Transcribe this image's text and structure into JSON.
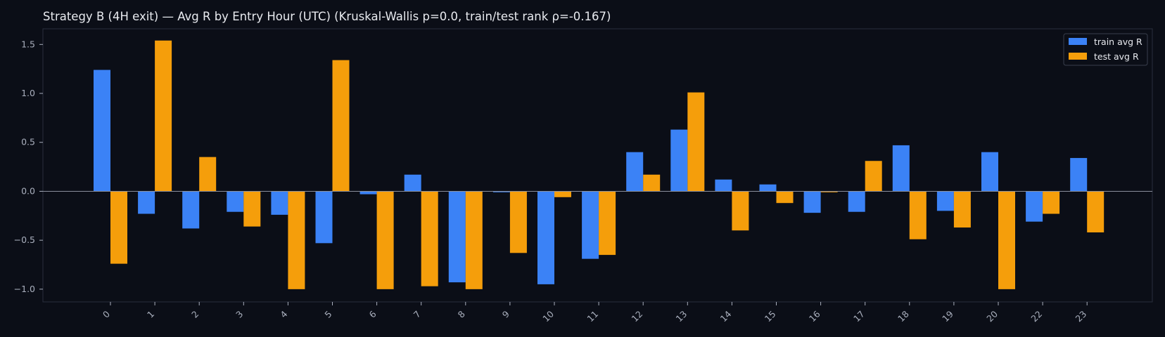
{
  "chart_data": {
    "type": "bar",
    "title": "Strategy B (4H exit) — Avg R by Entry Hour (UTC) (Kruskal-Wallis p=0.0, train/test rank ρ=-0.167)",
    "xlabel": "",
    "ylabel": "",
    "categories": [
      "0",
      "1",
      "2",
      "3",
      "4",
      "5",
      "6",
      "7",
      "8",
      "9",
      "10",
      "11",
      "12",
      "13",
      "14",
      "15",
      "16",
      "17",
      "18",
      "19",
      "20",
      "22",
      "23"
    ],
    "series": [
      {
        "name": "train avg R",
        "color": "#3b82f6",
        "values": [
          1.24,
          -0.23,
          -0.38,
          -0.21,
          -0.24,
          -0.53,
          -0.03,
          0.17,
          -0.93,
          -0.01,
          -0.95,
          -0.69,
          0.4,
          0.63,
          0.12,
          0.07,
          -0.22,
          -0.21,
          0.47,
          -0.2,
          0.4,
          -0.31,
          0.34
        ]
      },
      {
        "name": "test avg R",
        "color": "#f59e0b",
        "values": [
          -0.74,
          1.54,
          0.35,
          -0.36,
          -1.0,
          1.34,
          -1.0,
          -0.97,
          -1.0,
          -0.63,
          -0.06,
          -0.65,
          0.17,
          1.01,
          -0.4,
          -0.12,
          -0.01,
          0.31,
          -0.49,
          -0.37,
          -1.0,
          -0.23,
          -0.42
        ]
      }
    ],
    "ylim": [
      -1.13,
      1.66
    ],
    "yticks": [
      -1.0,
      -0.5,
      0.0,
      0.5,
      1.0,
      1.5
    ],
    "ytick_labels": [
      "−1.0",
      "−0.5",
      "0.0",
      "0.5",
      "1.0",
      "1.5"
    ],
    "legend_position": "top-right",
    "grid": false
  }
}
